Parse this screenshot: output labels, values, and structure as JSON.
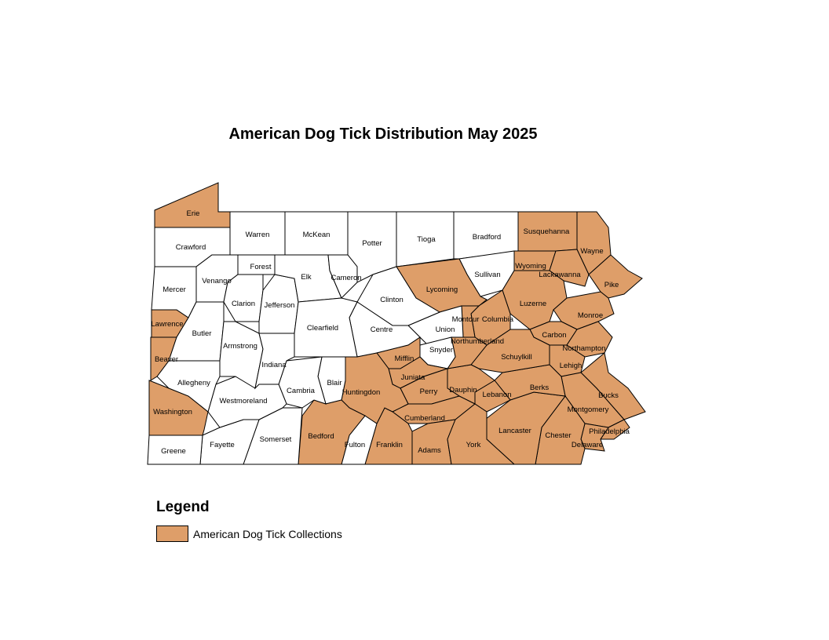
{
  "title": "American Dog Tick Distribution May 2025",
  "colors": {
    "collected": "#DE9E69",
    "not_collected": "#FFFFFF",
    "border": "#000000"
  },
  "legend": {
    "title": "Legend",
    "items": [
      {
        "label": "American Dog Tick Collections",
        "color": "#DE9E69"
      }
    ]
  },
  "counties": [
    {
      "name": "Erie",
      "collected": true
    },
    {
      "name": "Crawford",
      "collected": false
    },
    {
      "name": "Warren",
      "collected": false
    },
    {
      "name": "McKean",
      "collected": false
    },
    {
      "name": "Potter",
      "collected": false
    },
    {
      "name": "Tioga",
      "collected": false
    },
    {
      "name": "Bradford",
      "collected": false
    },
    {
      "name": "Susquehanna",
      "collected": true
    },
    {
      "name": "Wayne",
      "collected": true
    },
    {
      "name": "Pike",
      "collected": true
    },
    {
      "name": "Wyoming",
      "collected": true
    },
    {
      "name": "Lackawanna",
      "collected": true
    },
    {
      "name": "Sullivan",
      "collected": false
    },
    {
      "name": "Lycoming",
      "collected": true
    },
    {
      "name": "Luzerne",
      "collected": true
    },
    {
      "name": "Monroe",
      "collected": true
    },
    {
      "name": "Carbon",
      "collected": true
    },
    {
      "name": "Northampton",
      "collected": true
    },
    {
      "name": "Lehigh",
      "collected": true
    },
    {
      "name": "Bucks",
      "collected": true
    },
    {
      "name": "Montgomery",
      "collected": true
    },
    {
      "name": "Philadelphia",
      "collected": true
    },
    {
      "name": "Delaware",
      "collected": true
    },
    {
      "name": "Chester",
      "collected": true
    },
    {
      "name": "Lancaster",
      "collected": true
    },
    {
      "name": "Berks",
      "collected": true
    },
    {
      "name": "Schuylkill",
      "collected": true
    },
    {
      "name": "Lebanon",
      "collected": true
    },
    {
      "name": "Dauphin",
      "collected": true
    },
    {
      "name": "Columbia",
      "collected": true
    },
    {
      "name": "Montour",
      "collected": true
    },
    {
      "name": "Northumberland",
      "collected": true
    },
    {
      "name": "Union",
      "collected": false
    },
    {
      "name": "Snyder",
      "collected": false
    },
    {
      "name": "Clinton",
      "collected": false
    },
    {
      "name": "Centre",
      "collected": false
    },
    {
      "name": "Mifflin",
      "collected": true
    },
    {
      "name": "Juniata",
      "collected": true
    },
    {
      "name": "Perry",
      "collected": true
    },
    {
      "name": "Cumberland",
      "collected": true
    },
    {
      "name": "Adams",
      "collected": true
    },
    {
      "name": "York",
      "collected": true
    },
    {
      "name": "Franklin",
      "collected": true
    },
    {
      "name": "Fulton",
      "collected": false
    },
    {
      "name": "Huntingdon",
      "collected": true
    },
    {
      "name": "Blair",
      "collected": false
    },
    {
      "name": "Bedford",
      "collected": true
    },
    {
      "name": "Cambria",
      "collected": false
    },
    {
      "name": "Somerset",
      "collected": false
    },
    {
      "name": "Fayette",
      "collected": false
    },
    {
      "name": "Greene",
      "collected": false
    },
    {
      "name": "Washington",
      "collected": true
    },
    {
      "name": "Westmoreland",
      "collected": false
    },
    {
      "name": "Allegheny",
      "collected": false
    },
    {
      "name": "Beaver",
      "collected": true
    },
    {
      "name": "Lawrence",
      "collected": true
    },
    {
      "name": "Mercer",
      "collected": false
    },
    {
      "name": "Butler",
      "collected": false
    },
    {
      "name": "Armstrong",
      "collected": false
    },
    {
      "name": "Indiana",
      "collected": false
    },
    {
      "name": "Venango",
      "collected": false
    },
    {
      "name": "Clarion",
      "collected": false
    },
    {
      "name": "Forest",
      "collected": false
    },
    {
      "name": "Jefferson",
      "collected": false
    },
    {
      "name": "Elk",
      "collected": false
    },
    {
      "name": "Cameron",
      "collected": false
    },
    {
      "name": "Clearfield",
      "collected": false
    }
  ]
}
